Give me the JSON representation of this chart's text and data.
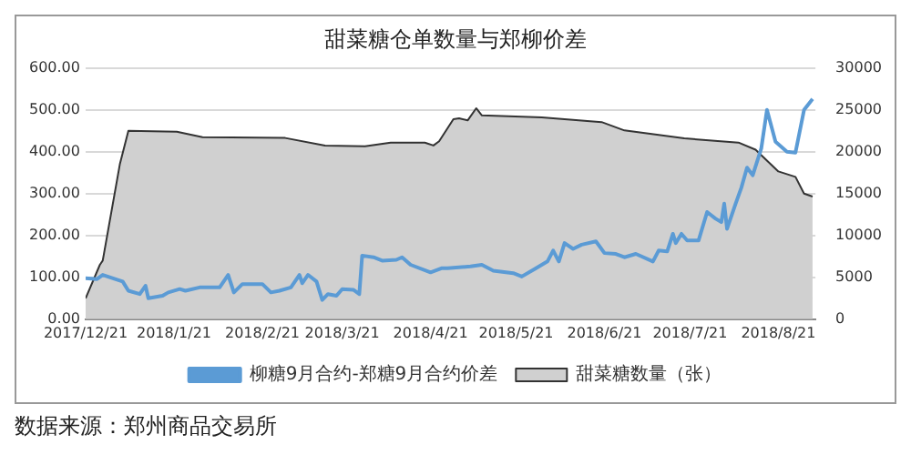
{
  "chart_data": {
    "type": "area",
    "title": "甜菜糖仓单数量与郑柳价差",
    "xlim": [
      "2017-12-21",
      "2018-09-03"
    ],
    "xticks": [
      {
        "value": "2017-12-21",
        "label": "2017/12/21"
      },
      {
        "value": "2018-01-21",
        "label": "2018/1/21"
      },
      {
        "value": "2018-02-21",
        "label": "2018/2/21"
      },
      {
        "value": "2018-03-21",
        "label": "2018/3/21"
      },
      {
        "value": "2018-04-21",
        "label": "2018/4/21"
      },
      {
        "value": "2018-05-21",
        "label": "2018/5/21"
      },
      {
        "value": "2018-06-21",
        "label": "2018/6/21"
      },
      {
        "value": "2018-07-21",
        "label": "2018/7/21"
      },
      {
        "value": "2018-08-21",
        "label": "2018/8/21"
      }
    ],
    "ylim": [
      0,
      600
    ],
    "yticks": [
      {
        "value": 0,
        "label": "0.00"
      },
      {
        "value": 100,
        "label": "100.00"
      },
      {
        "value": 200,
        "label": "200.00"
      },
      {
        "value": 300,
        "label": "300.00"
      },
      {
        "value": 400,
        "label": "400.00"
      },
      {
        "value": 500,
        "label": "500.00"
      },
      {
        "value": 600,
        "label": "600.00"
      }
    ],
    "y2lim": [
      0,
      30000
    ],
    "y2ticks": [
      0,
      5000,
      10000,
      15000,
      20000,
      25000,
      30000
    ],
    "grid": "y",
    "legend": "bottom",
    "series": [
      {
        "name": "甜菜糖数量（张）",
        "color": "#d0d0d0",
        "x": [
          "2017-12-21",
          "2017-12-26",
          "2017-12-27",
          "2018-01-02",
          "2018-01-05",
          "2018-01-22",
          "2018-01-31",
          "2018-03-01",
          "2018-03-15",
          "2018-03-29",
          "2018-04-07",
          "2018-04-19",
          "2018-04-22",
          "2018-04-24",
          "2018-04-29",
          "2018-05-01",
          "2018-05-04",
          "2018-05-07",
          "2018-05-09",
          "2018-05-30",
          "2018-06-20",
          "2018-06-28",
          "2018-07-19",
          "2018-08-07",
          "2018-08-13",
          "2018-08-21",
          "2018-08-27",
          "2018-08-30",
          "2018-09-02"
        ],
        "values": [
          50,
          130,
          140,
          370,
          450,
          448,
          435,
          433,
          415,
          413,
          422,
          422,
          415,
          425,
          478,
          480,
          475,
          504,
          487,
          482,
          471,
          451,
          432,
          422,
          405,
          353,
          340,
          300,
          293
        ]
      },
      {
        "name": "柳糖9月合约-郑糖9月合约价差",
        "type": "line",
        "axis": "y2",
        "color": "#5b9bd5",
        "x": [
          "2017-12-21",
          "2017-12-25",
          "2017-12-27",
          "2018-01-03",
          "2018-01-05",
          "2018-01-09",
          "2018-01-11",
          "2018-01-12",
          "2018-01-17",
          "2018-01-19",
          "2018-01-23",
          "2018-01-25",
          "2018-01-30",
          "2018-02-06",
          "2018-02-09",
          "2018-02-11",
          "2018-02-14",
          "2018-02-21",
          "2018-02-24",
          "2018-02-27",
          "2018-03-03",
          "2018-03-06",
          "2018-03-07",
          "2018-03-09",
          "2018-03-12",
          "2018-03-14",
          "2018-03-16",
          "2018-03-19",
          "2018-03-21",
          "2018-03-25",
          "2018-03-27",
          "2018-03-28",
          "2018-04-01",
          "2018-04-04",
          "2018-04-09",
          "2018-04-11",
          "2018-04-14",
          "2018-04-21",
          "2018-04-25",
          "2018-04-27",
          "2018-05-05",
          "2018-05-09",
          "2018-05-13",
          "2018-05-20",
          "2018-05-23",
          "2018-05-28",
          "2018-06-01",
          "2018-06-03",
          "2018-06-05",
          "2018-06-07",
          "2018-06-10",
          "2018-06-13",
          "2018-06-18",
          "2018-06-21",
          "2018-06-25",
          "2018-06-28",
          "2018-07-02",
          "2018-07-08",
          "2018-07-10",
          "2018-07-13",
          "2018-07-15",
          "2018-07-16",
          "2018-07-18",
          "2018-07-20",
          "2018-07-24",
          "2018-07-27",
          "2018-07-30",
          "2018-08-01",
          "2018-08-02",
          "2018-08-03",
          "2018-08-06",
          "2018-08-08",
          "2018-08-10",
          "2018-08-12",
          "2018-08-15",
          "2018-08-17",
          "2018-08-20",
          "2018-08-24",
          "2018-08-27",
          "2018-08-30",
          "2018-09-02"
        ],
        "values": [
          4900,
          4800,
          5300,
          4500,
          3400,
          3000,
          4000,
          2500,
          2800,
          3200,
          3600,
          3400,
          3800,
          3800,
          5300,
          3200,
          4200,
          4200,
          3200,
          3400,
          3800,
          5300,
          4300,
          5300,
          4500,
          2300,
          3000,
          2800,
          3600,
          3500,
          3000,
          7600,
          7400,
          7000,
          7100,
          7400,
          6500,
          5600,
          6100,
          6100,
          6300,
          6500,
          5800,
          5500,
          5100,
          6100,
          6900,
          8200,
          6900,
          9100,
          8400,
          8900,
          9300,
          7900,
          7800,
          7400,
          7800,
          6900,
          8200,
          8100,
          10200,
          9100,
          10200,
          9400,
          9400,
          12800,
          12000,
          11600,
          13800,
          10800,
          13800,
          15700,
          18100,
          17200,
          20400,
          25000,
          21200,
          20000,
          19900,
          25000,
          26300
        ]
      }
    ],
    "annotations": [
      "数据来源：郑州商品交易所"
    ]
  }
}
